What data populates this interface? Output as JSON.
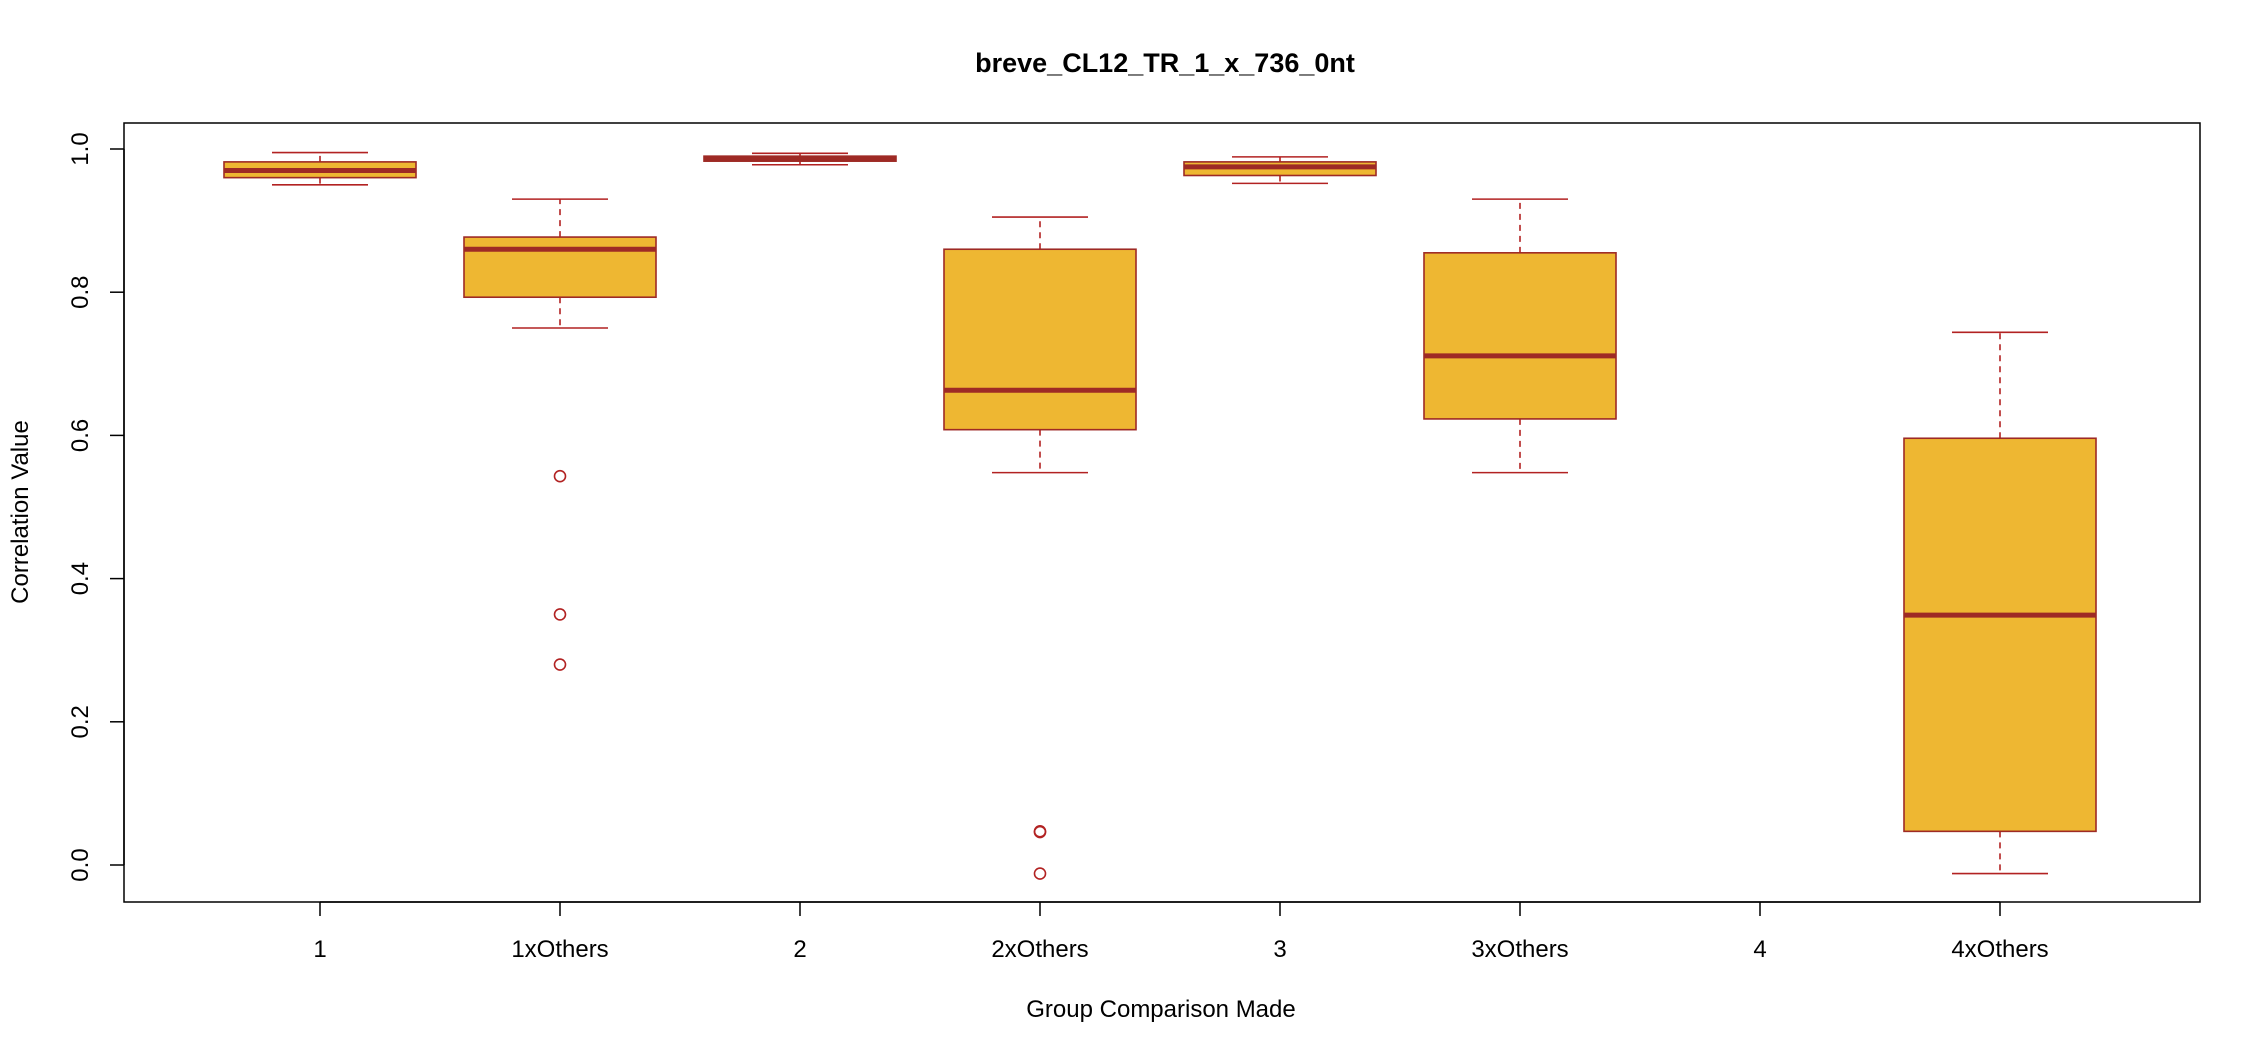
{
  "chart_data": {
    "type": "box",
    "title": "breve_CL12_TR_1_x_736_0nt",
    "xlabel": "Group Comparison Made",
    "ylabel": "Correlation Value",
    "ylim": [
      -0.05,
      1.035
    ],
    "y_ticks": [
      0.0,
      0.2,
      0.4,
      0.6,
      0.8,
      1.0
    ],
    "y_tick_labels": [
      "0.0",
      "0.2",
      "0.4",
      "0.6",
      "0.8",
      "1.0"
    ],
    "categories": [
      "1",
      "1xOthers",
      "2",
      "2xOthers",
      "3",
      "3xOthers",
      "4",
      "4xOthers"
    ],
    "boxes": [
      {
        "category": "1",
        "whisker_low": 0.95,
        "q1": 0.96,
        "median": 0.97,
        "q3": 0.982,
        "whisker_high": 0.995,
        "outliers": []
      },
      {
        "category": "1xOthers",
        "whisker_low": 0.75,
        "q1": 0.793,
        "median": 0.86,
        "q3": 0.877,
        "whisker_high": 0.93,
        "outliers": [
          0.543,
          0.35,
          0.28
        ]
      },
      {
        "category": "2",
        "whisker_low": 0.978,
        "q1": 0.983,
        "median": 0.986,
        "q3": 0.99,
        "whisker_high": 0.994,
        "outliers": []
      },
      {
        "category": "2xOthers",
        "whisker_low": 0.548,
        "q1": 0.608,
        "median": 0.663,
        "q3": 0.86,
        "whisker_high": 0.905,
        "outliers": [
          0.047,
          0.046,
          -0.012
        ]
      },
      {
        "category": "3",
        "whisker_low": 0.952,
        "q1": 0.963,
        "median": 0.975,
        "q3": 0.982,
        "whisker_high": 0.989,
        "outliers": []
      },
      {
        "category": "3xOthers",
        "whisker_low": 0.548,
        "q1": 0.623,
        "median": 0.711,
        "q3": 0.855,
        "whisker_high": 0.93,
        "outliers": []
      },
      {
        "category": "4",
        "empty": true
      },
      {
        "category": "4xOthers",
        "whisker_low": -0.012,
        "q1": 0.047,
        "median": 0.349,
        "q3": 0.596,
        "whisker_high": 0.744,
        "outliers": []
      }
    ],
    "colors": {
      "box_fill": "#EEB732",
      "box_border": "#9E2A25",
      "median_line": "#9E2A25",
      "whisker": "#B22222",
      "outlier": "#B22222",
      "axis": "#000000"
    },
    "grid": false,
    "legend": "none"
  }
}
